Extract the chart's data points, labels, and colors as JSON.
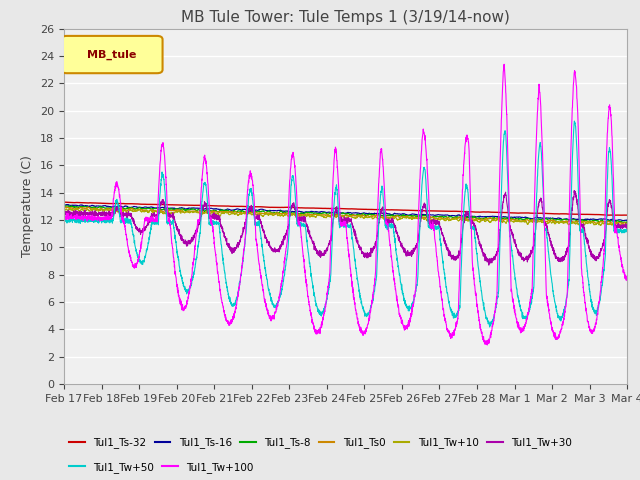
{
  "title": "MB Tule Tower: Tule Temps 1 (3/19/14-now)",
  "ylabel": "Temperature (C)",
  "xlabel": "",
  "ylim": [
    0,
    26
  ],
  "yticks": [
    0,
    2,
    4,
    6,
    8,
    10,
    12,
    14,
    16,
    18,
    20,
    22,
    24,
    26
  ],
  "xtick_labels": [
    "Feb 17",
    "Feb 18",
    "Feb 19",
    "Feb 20",
    "Feb 21",
    "Feb 22",
    "Feb 23",
    "Feb 24",
    "Feb 25",
    "Feb 26",
    "Feb 27",
    "Feb 28",
    "Mar 1",
    "Mar 2",
    "Mar 3",
    "Mar 4"
  ],
  "series": {
    "Tul1_Ts-32": {
      "color": "#cc0000",
      "lw": 1.0
    },
    "Tul1_Ts-16": {
      "color": "#000099",
      "lw": 0.8
    },
    "Tul1_Ts-8": {
      "color": "#00aa00",
      "lw": 0.8
    },
    "Tul1_Ts0": {
      "color": "#cc8800",
      "lw": 0.8
    },
    "Tul1_Tw+10": {
      "color": "#aaaa00",
      "lw": 0.8
    },
    "Tul1_Tw+30": {
      "color": "#aa00aa",
      "lw": 0.8
    },
    "Tul1_Tw+50": {
      "color": "#00cccc",
      "lw": 0.8
    },
    "Tul1_Tw+100": {
      "color": "#ff00ff",
      "lw": 0.8
    }
  },
  "legend_text": "MB_tule",
  "legend_bg": "#ffff99",
  "legend_border": "#cc8800",
  "bg_color": "#e8e8e8",
  "plot_bg": "#f0f0f0",
  "grid_color": "#ffffff",
  "title_fontsize": 11,
  "axis_fontsize": 9,
  "tick_fontsize": 8
}
